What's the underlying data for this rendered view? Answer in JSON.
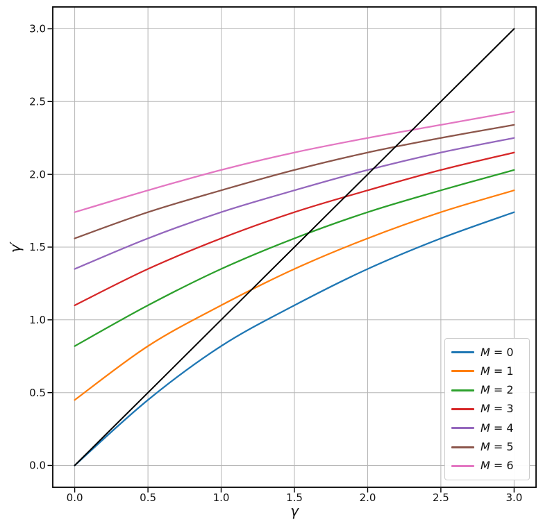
{
  "chart_data": {
    "type": "line",
    "title": "",
    "xlabel": "γ",
    "ylabel": "γ′",
    "xlim": [
      -0.15,
      3.15
    ],
    "ylim": [
      -0.15,
      3.15
    ],
    "grid": true,
    "grid_color": "#b5b5b5",
    "axis_color": "#000000",
    "legend_position": "lower right",
    "xticks": [
      0.0,
      0.5,
      1.0,
      1.5,
      2.0,
      2.5,
      3.0
    ],
    "xtick_labels": [
      "0.0",
      "0.5",
      "1.0",
      "1.5",
      "2.0",
      "2.5",
      "3.0"
    ],
    "yticks": [
      0.0,
      0.5,
      1.0,
      1.5,
      2.0,
      2.5,
      3.0
    ],
    "ytick_labels": [
      "0.0",
      "0.5",
      "1.0",
      "1.5",
      "2.0",
      "2.5",
      "3.0"
    ],
    "x": [
      0.0,
      0.5,
      1.0,
      1.5,
      2.0,
      2.5,
      3.0
    ],
    "series": [
      {
        "name": "M = 0",
        "color": "#1f77b4",
        "in_legend": true,
        "line_width": 2.3,
        "values": [
          0.0,
          0.45,
          0.82,
          1.1,
          1.35,
          1.56,
          1.74
        ]
      },
      {
        "name": "M = 1",
        "color": "#ff7f0e",
        "in_legend": true,
        "line_width": 2.3,
        "values": [
          0.45,
          0.82,
          1.1,
          1.35,
          1.56,
          1.74,
          1.89
        ]
      },
      {
        "name": "M = 2",
        "color": "#2ca02c",
        "in_legend": true,
        "line_width": 2.3,
        "values": [
          0.82,
          1.1,
          1.35,
          1.56,
          1.74,
          1.89,
          2.03
        ]
      },
      {
        "name": "M = 3",
        "color": "#d62728",
        "in_legend": true,
        "line_width": 2.3,
        "values": [
          1.1,
          1.35,
          1.56,
          1.74,
          1.89,
          2.03,
          2.15
        ]
      },
      {
        "name": "M = 4",
        "color": "#9467bd",
        "in_legend": true,
        "line_width": 2.3,
        "values": [
          1.35,
          1.56,
          1.74,
          1.89,
          2.03,
          2.15,
          2.25
        ]
      },
      {
        "name": "M = 5",
        "color": "#8c564b",
        "in_legend": true,
        "line_width": 2.3,
        "values": [
          1.56,
          1.74,
          1.89,
          2.03,
          2.15,
          2.25,
          2.34
        ]
      },
      {
        "name": "M = 6",
        "color": "#e377c2",
        "in_legend": true,
        "line_width": 2.3,
        "values": [
          1.74,
          1.89,
          2.03,
          2.15,
          2.25,
          2.34,
          2.43
        ]
      },
      {
        "name": "identity-line",
        "color": "#000000",
        "in_legend": false,
        "line_width": 2.0,
        "values": [
          0.0,
          0.5,
          1.0,
          1.5,
          2.0,
          2.5,
          3.0
        ]
      }
    ]
  }
}
